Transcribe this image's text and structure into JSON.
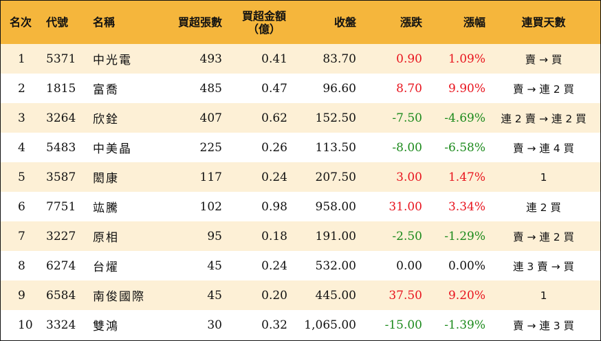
{
  "headers": {
    "rank": "名次",
    "code": "代號",
    "name": "名稱",
    "net_buy_volume": "買超張數",
    "net_buy_amount_line1": "買超金額",
    "net_buy_amount_line2": "（億）",
    "close": "收盤",
    "change": "漲跌",
    "change_pct": "漲幅",
    "streak": "連買天數"
  },
  "colors": {
    "header_bg": "#f5b63c",
    "odd_row_bg": "#fdf0d6",
    "up": "#e8141e",
    "down": "#1c8a1c"
  },
  "rows": [
    {
      "rank": "1",
      "code": "5371",
      "name": "中光電",
      "volume": "493",
      "amount": "0.41",
      "close": "83.70",
      "change": "0.90",
      "pct": "1.09%",
      "dir": "up",
      "streak": "賣 → 買"
    },
    {
      "rank": "2",
      "code": "1815",
      "name": "富喬",
      "volume": "485",
      "amount": "0.47",
      "close": "96.60",
      "change": "8.70",
      "pct": "9.90%",
      "dir": "up",
      "streak": "賣 → 連 2 買"
    },
    {
      "rank": "3",
      "code": "3264",
      "name": "欣銓",
      "volume": "407",
      "amount": "0.62",
      "close": "152.50",
      "change": "-7.50",
      "pct": "-4.69%",
      "dir": "down",
      "streak": "連 2 賣 → 連 2 買"
    },
    {
      "rank": "4",
      "code": "5483",
      "name": "中美晶",
      "volume": "225",
      "amount": "0.26",
      "close": "113.50",
      "change": "-8.00",
      "pct": "-6.58%",
      "dir": "down",
      "streak": "賣 → 連 4 買"
    },
    {
      "rank": "5",
      "code": "3587",
      "name": "閎康",
      "volume": "117",
      "amount": "0.24",
      "close": "207.50",
      "change": "3.00",
      "pct": "1.47%",
      "dir": "up",
      "streak": "1"
    },
    {
      "rank": "6",
      "code": "7751",
      "name": "竑騰",
      "volume": "102",
      "amount": "0.98",
      "close": "958.00",
      "change": "31.00",
      "pct": "3.34%",
      "dir": "up",
      "streak": "連 2 買"
    },
    {
      "rank": "7",
      "code": "3227",
      "name": "原相",
      "volume": "95",
      "amount": "0.18",
      "close": "191.00",
      "change": "-2.50",
      "pct": "-1.29%",
      "dir": "down",
      "streak": "賣 → 連 2 買"
    },
    {
      "rank": "8",
      "code": "6274",
      "name": "台燿",
      "volume": "45",
      "amount": "0.24",
      "close": "532.00",
      "change": "0.00",
      "pct": "0.00%",
      "dir": "flat",
      "streak": "連 3 賣 → 買"
    },
    {
      "rank": "9",
      "code": "6584",
      "name": "南俊國際",
      "volume": "45",
      "amount": "0.20",
      "close": "445.00",
      "change": "37.50",
      "pct": "9.20%",
      "dir": "up",
      "streak": "1"
    },
    {
      "rank": "10",
      "code": "3324",
      "name": "雙鴻",
      "volume": "30",
      "amount": "0.32",
      "close": "1,065.00",
      "change": "-15.00",
      "pct": "-1.39%",
      "dir": "down",
      "streak": "賣 → 連 3 買"
    }
  ]
}
